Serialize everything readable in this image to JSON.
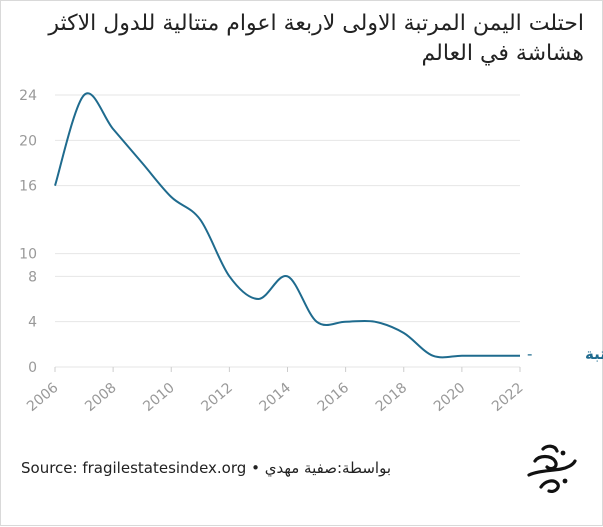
{
  "title_lines": [
    "احتلت اليمن المرتبة الاولى لاربعة اعوام متتالية للدول الاكثر",
    "هشاشة في العالم"
  ],
  "footer": {
    "source": "Source: fragilestatesindex.org",
    "separator": "•",
    "credit": "بواسطة:صفية مهدي"
  },
  "colors": {
    "line": "#1f6b8e",
    "grid": "#e6e6e6",
    "tick": "#999999",
    "text": "#222222"
  },
  "icons": {
    "logo": "publisher-logo"
  },
  "chart_data": {
    "type": "line",
    "x_ticks": [
      "2006",
      "2008",
      "2010",
      "2012",
      "2014",
      "2016",
      "2018",
      "2020",
      "2022"
    ],
    "y_ticks": [
      "0",
      "4",
      "8",
      "10",
      "16",
      "20",
      "24"
    ],
    "ylim": [
      0,
      24
    ],
    "xlim": [
      2006,
      2022
    ],
    "grid": true,
    "series": [
      {
        "name": "المرتبة",
        "points": [
          [
            2006,
            16
          ],
          [
            2007,
            24
          ],
          [
            2008,
            21
          ],
          [
            2009,
            18
          ],
          [
            2010,
            15
          ],
          [
            2011,
            13
          ],
          [
            2012,
            8
          ],
          [
            2013,
            6
          ],
          [
            2014,
            8
          ],
          [
            2015,
            4
          ],
          [
            2016,
            4
          ],
          [
            2017,
            4
          ],
          [
            2018,
            3
          ],
          [
            2019,
            1
          ],
          [
            2020,
            1
          ],
          [
            2021,
            1
          ],
          [
            2022,
            1
          ]
        ]
      }
    ]
  }
}
